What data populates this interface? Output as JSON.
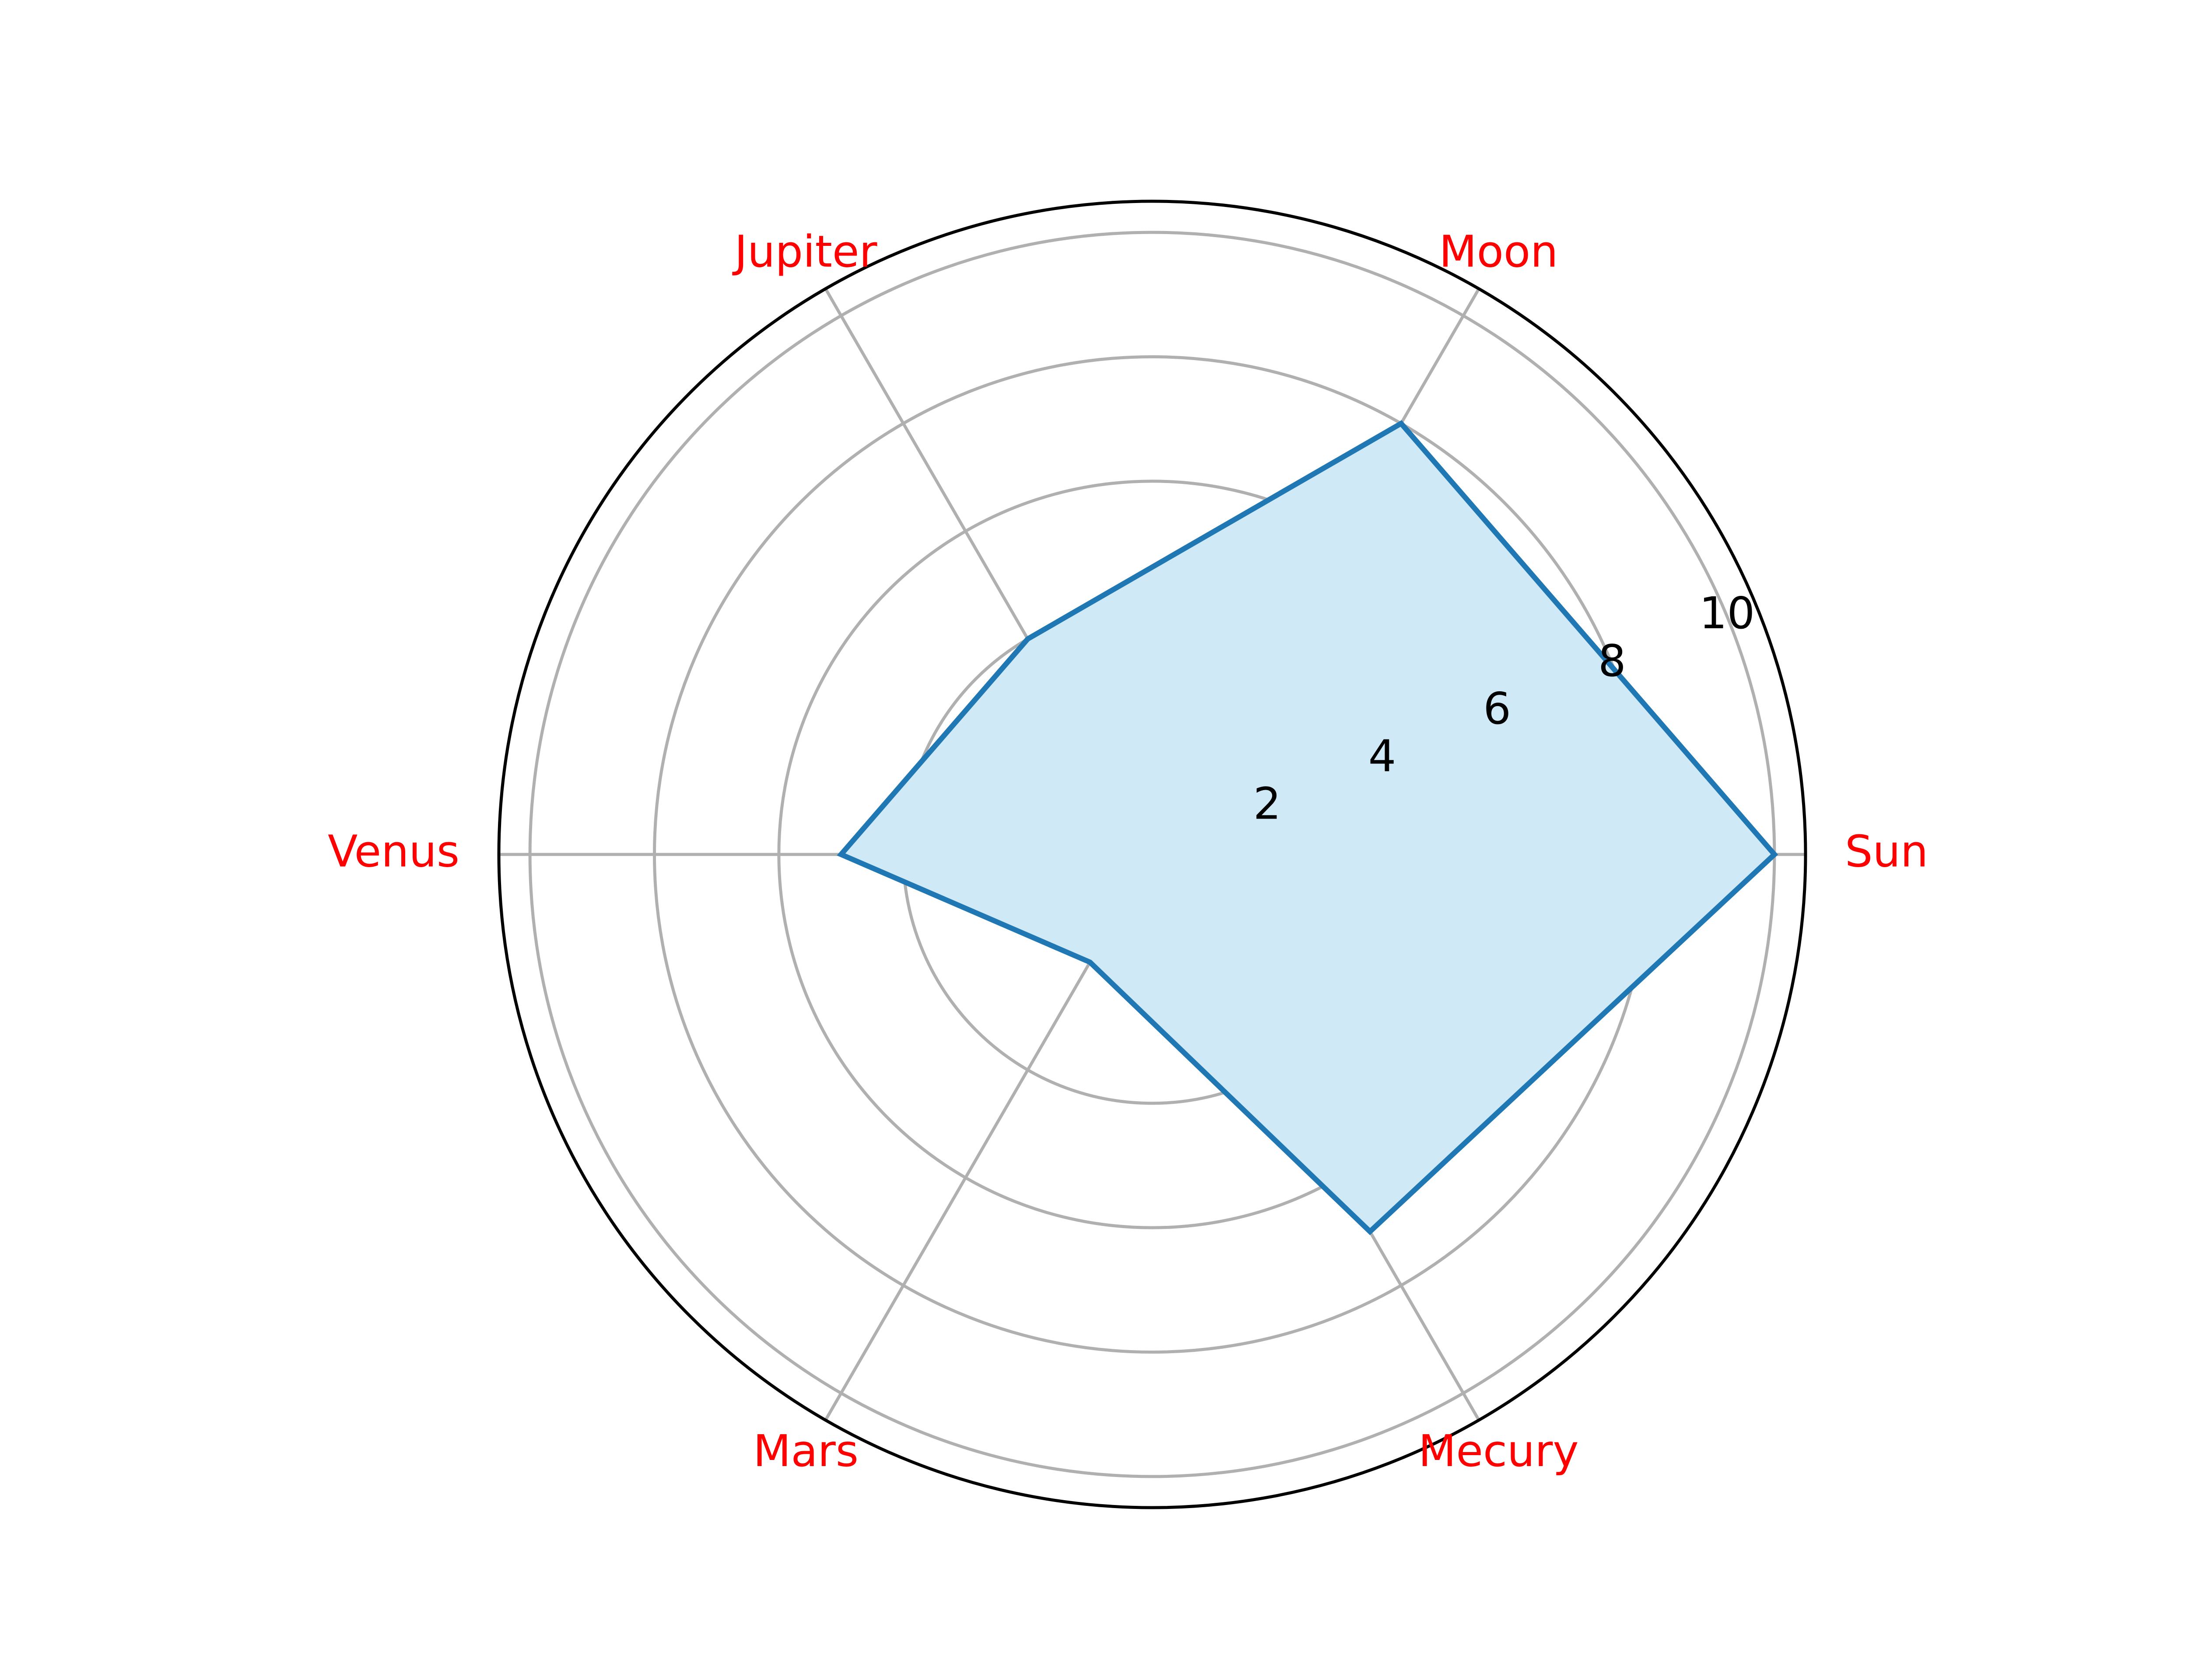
{
  "chart_data": {
    "type": "radar",
    "categories": [
      "Sun",
      "Moon",
      "Jupiter",
      "Venus",
      "Mars",
      "Mecury"
    ],
    "values": [
      10,
      8,
      4,
      5,
      2,
      7
    ],
    "rlim": [
      0,
      10.5
    ],
    "rticks": [
      2,
      4,
      6,
      8,
      10
    ],
    "rtick_labels": [
      "2",
      "4",
      "6",
      "8",
      "10"
    ],
    "grid": true,
    "colors": {
      "line": "#1f77b4",
      "fill": "#d0e9f6",
      "grid": "#b0b0b0",
      "category_label": "#ff0000",
      "outline": "#000000"
    }
  }
}
